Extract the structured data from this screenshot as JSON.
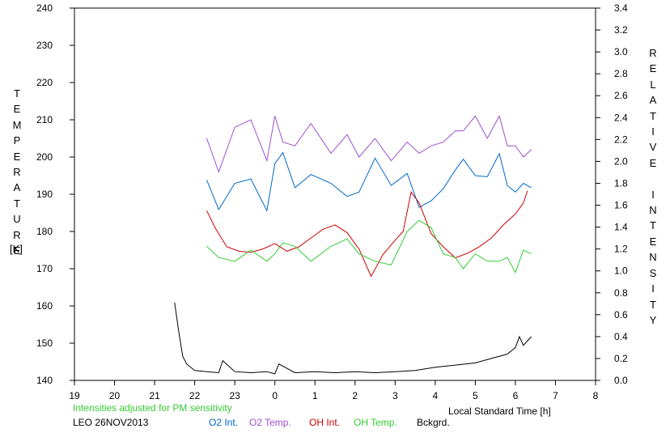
{
  "chart_data": {
    "type": "line",
    "title": "",
    "xlabel": "Local Standard Time [h]",
    "ylabel_left": "TEMPERATURE",
    "ylabel_left_unit": "[K]",
    "ylabel_right": "RELATIVE INTENSITY",
    "x_ticks": [
      "19",
      "20",
      "21",
      "22",
      "23",
      "0",
      "1",
      "2",
      "3",
      "4",
      "5",
      "6",
      "7",
      "8"
    ],
    "x_range": [
      19,
      32
    ],
    "y_left_ticks": [
      140,
      150,
      160,
      170,
      180,
      190,
      200,
      210,
      220,
      230,
      240
    ],
    "y_left_range": [
      140,
      240
    ],
    "y_right_ticks": [
      "0.0",
      "0.2",
      "0.4",
      "0.6",
      "0.8",
      "1.0",
      "1.2",
      "1.4",
      "1.6",
      "1.8",
      "2.0",
      "2.2",
      "2.4",
      "2.6",
      "2.8",
      "3.0",
      "3.2",
      "3.4"
    ],
    "y_right_range": [
      0.0,
      3.4
    ],
    "series": [
      {
        "name": "O2 Int.",
        "color": "#0066cc",
        "axis": "right",
        "x": [
          22.3,
          22.6,
          23.0,
          23.4,
          23.8,
          24.0,
          24.2,
          24.5,
          24.9,
          25.4,
          25.8,
          26.1,
          26.5,
          26.9,
          27.3,
          27.6,
          27.9,
          28.2,
          28.5,
          28.7,
          29.0,
          29.3,
          29.6,
          29.8,
          30.0,
          30.2,
          30.4
        ],
        "y": [
          1.83,
          1.56,
          1.8,
          1.84,
          1.55,
          1.98,
          2.08,
          1.76,
          1.88,
          1.8,
          1.68,
          1.72,
          2.03,
          1.78,
          1.89,
          1.58,
          1.64,
          1.75,
          1.92,
          2.02,
          1.87,
          1.86,
          2.07,
          1.78,
          1.72,
          1.8,
          1.76
        ]
      },
      {
        "name": "O2 Temp.",
        "color": "#9b4fcf",
        "axis": "left",
        "x": [
          22.3,
          22.6,
          23.0,
          23.4,
          23.8,
          24.0,
          24.2,
          24.5,
          24.9,
          25.4,
          25.8,
          26.1,
          26.5,
          26.9,
          27.3,
          27.6,
          27.9,
          28.2,
          28.5,
          28.7,
          29.0,
          29.3,
          29.6,
          29.8,
          30.0,
          30.2,
          30.4
        ],
        "y": [
          205,
          196,
          208,
          210,
          199,
          211,
          204,
          203,
          209,
          201,
          206,
          200,
          205,
          199,
          204,
          201,
          203,
          204,
          207,
          207,
          211,
          205,
          211,
          203,
          203,
          200,
          202
        ]
      },
      {
        "name": "OH Int.",
        "color": "#cc0000",
        "axis": "right",
        "x": [
          22.3,
          22.5,
          22.8,
          23.1,
          23.4,
          23.7,
          24.0,
          24.3,
          24.6,
          24.9,
          25.2,
          25.5,
          25.8,
          26.1,
          26.4,
          26.7,
          27.0,
          27.2,
          27.4,
          27.6,
          27.9,
          28.2,
          28.5,
          28.8,
          29.1,
          29.4,
          29.7,
          30.0,
          30.2,
          30.3
        ],
        "y": [
          1.55,
          1.4,
          1.22,
          1.18,
          1.17,
          1.2,
          1.25,
          1.18,
          1.22,
          1.3,
          1.38,
          1.42,
          1.35,
          1.2,
          0.95,
          1.15,
          1.28,
          1.36,
          1.72,
          1.62,
          1.34,
          1.22,
          1.12,
          1.16,
          1.22,
          1.3,
          1.42,
          1.52,
          1.62,
          1.73
        ]
      },
      {
        "name": "OH Temp.",
        "color": "#33cc33",
        "axis": "left",
        "x": [
          22.3,
          22.6,
          23.0,
          23.4,
          23.8,
          24.0,
          24.2,
          24.5,
          24.9,
          25.4,
          25.8,
          26.1,
          26.5,
          26.9,
          27.3,
          27.6,
          27.9,
          28.2,
          28.5,
          28.7,
          29.0,
          29.3,
          29.6,
          29.8,
          30.0,
          30.2,
          30.4
        ],
        "y": [
          176,
          173,
          172,
          175,
          172,
          174,
          177,
          176,
          172,
          176,
          178,
          174,
          172,
          171,
          180,
          183,
          181,
          174,
          173,
          170,
          174,
          172,
          172,
          173,
          169,
          175,
          174
        ]
      },
      {
        "name": "Bckgrd.",
        "color": "#000000",
        "axis": "right",
        "x": [
          21.5,
          21.6,
          21.7,
          21.8,
          22.0,
          22.3,
          22.6,
          22.7,
          23.0,
          23.4,
          23.8,
          24.0,
          24.1,
          24.5,
          25.0,
          25.5,
          26.0,
          26.5,
          27.0,
          27.5,
          28.0,
          28.5,
          29.0,
          29.4,
          29.8,
          30.0,
          30.1,
          30.2,
          30.4
        ],
        "y": [
          0.71,
          0.45,
          0.22,
          0.15,
          0.09,
          0.08,
          0.07,
          0.18,
          0.08,
          0.07,
          0.08,
          0.06,
          0.15,
          0.07,
          0.08,
          0.07,
          0.08,
          0.07,
          0.08,
          0.09,
          0.12,
          0.14,
          0.16,
          0.2,
          0.24,
          0.3,
          0.4,
          0.32,
          0.4
        ]
      }
    ],
    "legend_placement": "bottom",
    "grid": false
  },
  "footer": {
    "note": "Intensities adjusted for PM sensitivity",
    "station": "LEO 26NOV2013",
    "legend": [
      {
        "label": "O2 Int.",
        "color": "#0066cc"
      },
      {
        "label": "O2 Temp.",
        "color": "#9b4fcf"
      },
      {
        "label": "OH Int.",
        "color": "#cc0000"
      },
      {
        "label": "OH Temp.",
        "color": "#33cc33"
      },
      {
        "label": "Bckgrd.",
        "color": "#000000"
      }
    ]
  },
  "colors": {
    "note": "#33cc33",
    "axis": "#000000"
  }
}
